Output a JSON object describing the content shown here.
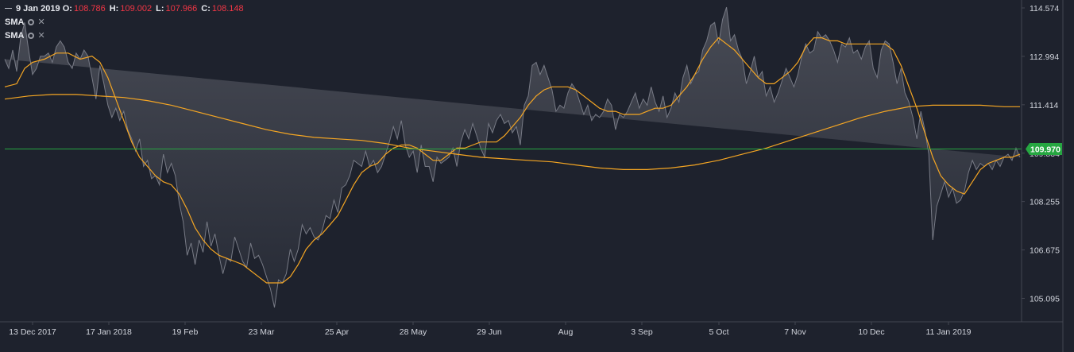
{
  "legend": {
    "date": "9 Jan 2019",
    "o_label": "O:",
    "o_value": "108.786",
    "h_label": "H:",
    "h_value": "109.002",
    "l_label": "L:",
    "l_value": "107.966",
    "c_label": "C:",
    "c_value": "108.148",
    "indicators": [
      {
        "name": "SMA",
        "settings_icon": "gear-icon",
        "remove_icon": "close-icon",
        "remove_glyph": "✕"
      },
      {
        "name": "SMA",
        "settings_icon": "gear-icon",
        "remove_icon": "close-icon",
        "remove_glyph": "✕"
      }
    ]
  },
  "colors": {
    "background": "#1e222d",
    "area_line": "#787b86",
    "area_fill_top": "#4a4d57",
    "area_fill_bottom": "#262a35",
    "sma": "#f5a623",
    "price_line": "#26a641",
    "axis_text": "#d1d4dc"
  },
  "chart_data": {
    "type": "area",
    "x_tick_labels": [
      "13 Dec 2017",
      "17 Jan 2018",
      "19 Feb",
      "23 Mar",
      "25 Apr",
      "28 May",
      "29 Jun",
      "Aug",
      "3 Sep",
      "5 Oct",
      "7 Nov",
      "10 Dec",
      "11 Jan 2019"
    ],
    "y_tick_labels": [
      "114.574",
      "112.994",
      "111.414",
      "109.834",
      "108.255",
      "106.675",
      "105.095"
    ],
    "y_ticks": [
      114.574,
      112.994,
      111.414,
      109.834,
      108.255,
      106.675,
      105.095
    ],
    "ylim": [
      104.2,
      115.2
    ],
    "current_price": 109.97,
    "current_price_label": "109.970",
    "price_series_x": [
      0,
      5,
      10,
      15,
      20,
      25,
      30,
      35,
      40,
      45,
      50,
      55,
      60,
      65,
      70,
      75,
      80,
      85,
      90,
      95,
      100,
      105,
      110,
      115,
      120,
      125,
      130,
      135,
      140,
      145,
      150,
      155,
      160,
      165,
      170,
      175,
      180,
      185,
      190,
      195,
      200,
      205,
      210,
      215,
      220,
      225,
      230,
      235,
      240,
      245,
      250,
      255,
      260,
      265,
      270,
      275,
      280,
      285,
      290,
      295,
      300,
      305,
      310,
      315,
      320,
      325,
      330,
      335,
      340,
      345,
      350,
      355,
      360,
      365,
      370,
      375,
      380,
      385,
      390,
      395,
      400,
      405,
      410,
      415,
      420,
      425,
      430,
      435,
      440,
      445,
      450,
      455,
      460,
      465,
      470,
      475,
      480,
      485,
      490,
      495,
      500,
      505,
      510,
      515,
      520,
      525,
      530,
      535,
      540,
      545,
      550,
      555,
      560,
      565,
      570,
      575,
      580,
      585,
      590,
      595,
      600,
      605,
      610,
      615,
      620,
      625,
      630,
      635,
      640,
      645,
      650,
      655,
      660,
      665,
      670,
      675,
      680,
      685,
      690,
      695,
      700,
      705,
      710,
      715,
      720,
      725,
      730,
      735,
      740,
      745,
      750,
      755,
      760,
      765,
      770,
      775,
      780,
      785,
      790,
      795,
      800,
      805,
      810,
      815,
      820,
      825,
      830,
      835,
      840,
      845,
      850,
      855,
      860,
      865,
      870,
      875,
      880,
      885,
      890,
      895,
      900,
      905,
      910,
      915,
      920,
      925,
      930,
      935,
      940,
      945,
      950,
      955,
      960,
      965,
      970,
      975,
      980,
      985,
      990,
      995,
      1000,
      1005,
      1010,
      1015,
      1020,
      1025,
      1030,
      1035,
      1040,
      1045,
      1050,
      1055,
      1060,
      1065,
      1070,
      1075,
      1080,
      1085,
      1090,
      1095,
      1100,
      1105,
      1110,
      1115,
      1120,
      1125,
      1130,
      1135,
      1140,
      1145,
      1150,
      1155,
      1160,
      1165,
      1170,
      1175,
      1180,
      1185,
      1190,
      1195,
      1200,
      1205,
      1210,
      1215,
      1220,
      1225,
      1230,
      1235,
      1240,
      1245,
      1250,
      1255,
      1260,
      1265,
      1270,
      1275,
      1280
    ],
    "price_series": [
      112.9,
      112.6,
      113.2,
      112.5,
      113.6,
      114.1,
      113.2,
      112.4,
      112.6,
      113.0,
      113.0,
      113.1,
      112.8,
      113.3,
      113.5,
      113.3,
      112.8,
      112.6,
      113.1,
      112.9,
      113.2,
      113.0,
      112.3,
      111.6,
      112.7,
      112.1,
      111.4,
      111.0,
      111.3,
      110.9,
      111.2,
      110.6,
      110.3,
      109.9,
      110.3,
      109.4,
      109.6,
      109.0,
      109.1,
      108.8,
      109.8,
      109.2,
      109.5,
      109.1,
      108.2,
      107.6,
      106.5,
      106.9,
      106.2,
      107.0,
      106.6,
      107.6,
      106.8,
      107.2,
      106.5,
      105.9,
      106.4,
      106.3,
      107.1,
      106.7,
      106.3,
      106.1,
      106.9,
      106.4,
      106.5,
      106.2,
      105.8,
      105.4,
      104.8,
      105.7,
      105.6,
      105.9,
      106.7,
      106.3,
      106.7,
      107.5,
      107.2,
      107.4,
      107.1,
      107.0,
      107.3,
      107.8,
      107.7,
      108.3,
      107.9,
      108.7,
      108.8,
      109.1,
      109.6,
      109.5,
      109.4,
      109.9,
      109.4,
      109.6,
      109.2,
      109.4,
      109.8,
      110.2,
      110.7,
      110.3,
      110.9,
      110.1,
      109.7,
      109.9,
      109.2,
      110.1,
      109.4,
      109.4,
      108.9,
      109.7,
      109.5,
      109.6,
      109.7,
      110.0,
      109.4,
      110.2,
      110.6,
      110.3,
      110.8,
      110.4,
      110.0,
      109.7,
      110.8,
      110.5,
      110.9,
      111.1,
      110.8,
      110.9,
      110.5,
      110.7,
      110.1,
      111.4,
      111.7,
      112.7,
      112.8,
      112.4,
      112.7,
      112.3,
      111.9,
      111.2,
      111.4,
      111.3,
      111.8,
      112.1,
      111.9,
      111.5,
      111.1,
      111.4,
      110.9,
      111.1,
      111.0,
      111.2,
      111.6,
      111.4,
      110.6,
      111.1,
      111.0,
      111.2,
      111.5,
      111.8,
      111.3,
      111.6,
      111.4,
      112.0,
      111.5,
      111.2,
      111.7,
      111.0,
      111.3,
      111.8,
      111.5,
      112.3,
      112.7,
      112.1,
      112.4,
      112.5,
      113.2,
      113.5,
      114.0,
      114.1,
      113.4,
      114.2,
      114.6,
      113.5,
      113.7,
      113.2,
      112.9,
      112.1,
      112.5,
      113.0,
      112.3,
      112.5,
      111.7,
      112.0,
      111.5,
      111.8,
      112.2,
      112.6,
      112.3,
      112.0,
      112.4,
      113.0,
      113.4,
      113.1,
      113.2,
      113.8,
      113.6,
      113.7,
      113.5,
      113.2,
      112.8,
      113.4,
      113.3,
      113.6,
      113.1,
      113.2,
      112.9,
      113.3,
      113.5,
      112.6,
      112.3,
      113.2,
      113.5,
      113.4,
      112.8,
      112.1,
      112.6,
      111.8,
      111.5,
      111.0,
      110.3,
      111.2,
      110.6,
      109.8,
      107.0,
      108.1,
      108.5,
      108.9,
      108.4,
      108.7,
      108.2,
      108.3,
      108.6,
      109.2,
      109.6,
      109.3,
      109.5,
      109.4,
      109.5,
      109.3,
      109.6,
      109.4,
      109.7,
      109.8,
      109.6,
      110.0,
      109.7,
      110.1
    ],
    "sma_short_x": [
      0,
      15,
      25,
      35,
      50,
      65,
      80,
      95,
      110,
      120,
      130,
      140,
      150,
      160,
      170,
      180,
      190,
      200,
      210,
      220,
      230,
      240,
      250,
      260,
      270,
      280,
      290,
      300,
      310,
      320,
      330,
      340,
      350,
      360,
      370,
      380,
      390,
      400,
      410,
      420,
      430,
      440,
      450,
      460,
      470,
      480,
      490,
      500,
      510,
      520,
      530,
      540,
      550,
      560,
      570,
      580,
      590,
      600,
      610,
      620,
      630,
      640,
      650,
      660,
      670,
      680,
      690,
      700,
      710,
      720,
      730,
      740,
      750,
      760,
      770,
      780,
      790,
      800,
      810,
      820,
      830,
      840,
      850,
      860,
      870,
      880,
      890,
      900,
      910,
      920,
      930,
      940,
      950,
      960,
      970,
      980,
      990,
      1000,
      1010,
      1020,
      1030,
      1040,
      1050,
      1060,
      1070,
      1080,
      1090,
      1100,
      1110,
      1120,
      1130,
      1140,
      1150,
      1160,
      1170,
      1180,
      1190,
      1200,
      1210,
      1220,
      1230,
      1240,
      1250,
      1260,
      1270,
      1280
    ],
    "sma_short": [
      112.0,
      112.1,
      112.6,
      112.8,
      112.9,
      113.1,
      113.1,
      112.9,
      113.0,
      112.8,
      112.3,
      111.6,
      110.9,
      110.2,
      109.7,
      109.4,
      109.1,
      108.9,
      108.8,
      108.5,
      108.0,
      107.4,
      107.0,
      106.7,
      106.5,
      106.4,
      106.3,
      106.2,
      106.0,
      105.8,
      105.6,
      105.6,
      105.6,
      105.8,
      106.2,
      106.7,
      107.0,
      107.2,
      107.5,
      107.8,
      108.3,
      108.8,
      109.2,
      109.4,
      109.5,
      109.8,
      110.0,
      110.1,
      110.1,
      110.0,
      109.8,
      109.6,
      109.6,
      109.8,
      110.0,
      110.0,
      110.1,
      110.2,
      110.2,
      110.2,
      110.4,
      110.7,
      111.0,
      111.4,
      111.7,
      111.9,
      112.0,
      112.0,
      112.0,
      111.9,
      111.7,
      111.5,
      111.3,
      111.2,
      111.2,
      111.1,
      111.1,
      111.1,
      111.2,
      111.3,
      111.3,
      111.4,
      111.7,
      112.0,
      112.4,
      112.9,
      113.3,
      113.6,
      113.4,
      113.2,
      112.9,
      112.6,
      112.3,
      112.1,
      112.1,
      112.3,
      112.5,
      112.8,
      113.3,
      113.6,
      113.6,
      113.5,
      113.5,
      113.4,
      113.4,
      113.4,
      113.4,
      113.4,
      113.4,
      113.2,
      112.7,
      112.0,
      111.3,
      110.5,
      109.7,
      109.1,
      108.8,
      108.6,
      108.5,
      108.9,
      109.3,
      109.5,
      109.6,
      109.7,
      109.7,
      109.8
    ],
    "sma_long_x": [
      0,
      30,
      60,
      90,
      120,
      150,
      180,
      210,
      240,
      270,
      300,
      330,
      360,
      390,
      420,
      450,
      480,
      510,
      540,
      570,
      600,
      630,
      660,
      690,
      720,
      750,
      780,
      810,
      840,
      870,
      900,
      930,
      960,
      990,
      1020,
      1050,
      1080,
      1110,
      1140,
      1170,
      1200,
      1230,
      1260,
      1280
    ],
    "sma_long": [
      111.6,
      111.7,
      111.75,
      111.75,
      111.7,
      111.65,
      111.55,
      111.4,
      111.2,
      111.0,
      110.8,
      110.6,
      110.45,
      110.35,
      110.3,
      110.25,
      110.15,
      110.0,
      109.9,
      109.8,
      109.7,
      109.65,
      109.6,
      109.55,
      109.45,
      109.35,
      109.3,
      109.3,
      109.35,
      109.45,
      109.6,
      109.8,
      110.0,
      110.25,
      110.5,
      110.75,
      111.0,
      111.2,
      111.35,
      111.4,
      111.4,
      111.4,
      111.35,
      111.35
    ]
  }
}
